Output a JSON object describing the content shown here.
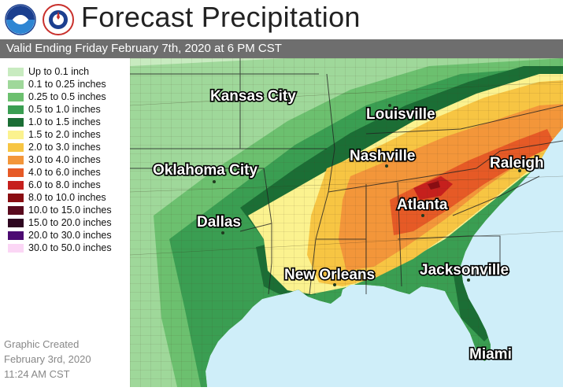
{
  "header": {
    "title": "Forecast Precipitation",
    "logos": [
      "noaa-logo-icon",
      "nws-logo-icon"
    ]
  },
  "valid_text": "Valid Ending Friday February 7th, 2020 at 6 PM CST",
  "legend": [
    {
      "label": "Up to 0.1 inch",
      "color": "#c8ebc0"
    },
    {
      "label": "0.1 to 0.25 inches",
      "color": "#9fd89a"
    },
    {
      "label": "0.25 to 0.5 inches",
      "color": "#6cc06f"
    },
    {
      "label": "0.5 to 1.0 inches",
      "color": "#3a9e52"
    },
    {
      "label": "1.0 to 1.5 inches",
      "color": "#1b6e35"
    },
    {
      "label": "1.5 to 2.0 inches",
      "color": "#fbf28f"
    },
    {
      "label": "2.0 to 3.0 inches",
      "color": "#f7c543"
    },
    {
      "label": "3.0 to 4.0 inches",
      "color": "#f3963a"
    },
    {
      "label": "4.0 to 6.0 inches",
      "color": "#e65a26"
    },
    {
      "label": "6.0 to 8.0 inches",
      "color": "#c6201d"
    },
    {
      "label": "8.0 to 10.0 inches",
      "color": "#8a0d12"
    },
    {
      "label": "10.0 to 15.0 inches",
      "color": "#5a0a1e"
    },
    {
      "label": "15.0 to 20.0 inches",
      "color": "#2e0620"
    },
    {
      "label": "20.0 to 30.0 inches",
      "color": "#4c0a72"
    },
    {
      "label": "30.0 to 50.0 inches",
      "color": "#fbd6f5"
    }
  ],
  "cities": {
    "kansas_city": "Kansas City",
    "louisville": "Louisville",
    "nashville": "Nashville",
    "raleigh": "Raleigh",
    "oklahoma_city": "Oklahoma City",
    "atlanta": "Atlanta",
    "dallas": "Dallas",
    "new_orleans": "New Orleans",
    "jacksonville": "Jacksonville",
    "miami": "Miami"
  },
  "footer": {
    "line1": "Graphic Created",
    "line2": "February 3rd, 2020",
    "line3": "11:24 AM CST"
  },
  "map_colors": {
    "ocean": "#cfeef9",
    "no_precip_land": "#d4d4d4"
  }
}
